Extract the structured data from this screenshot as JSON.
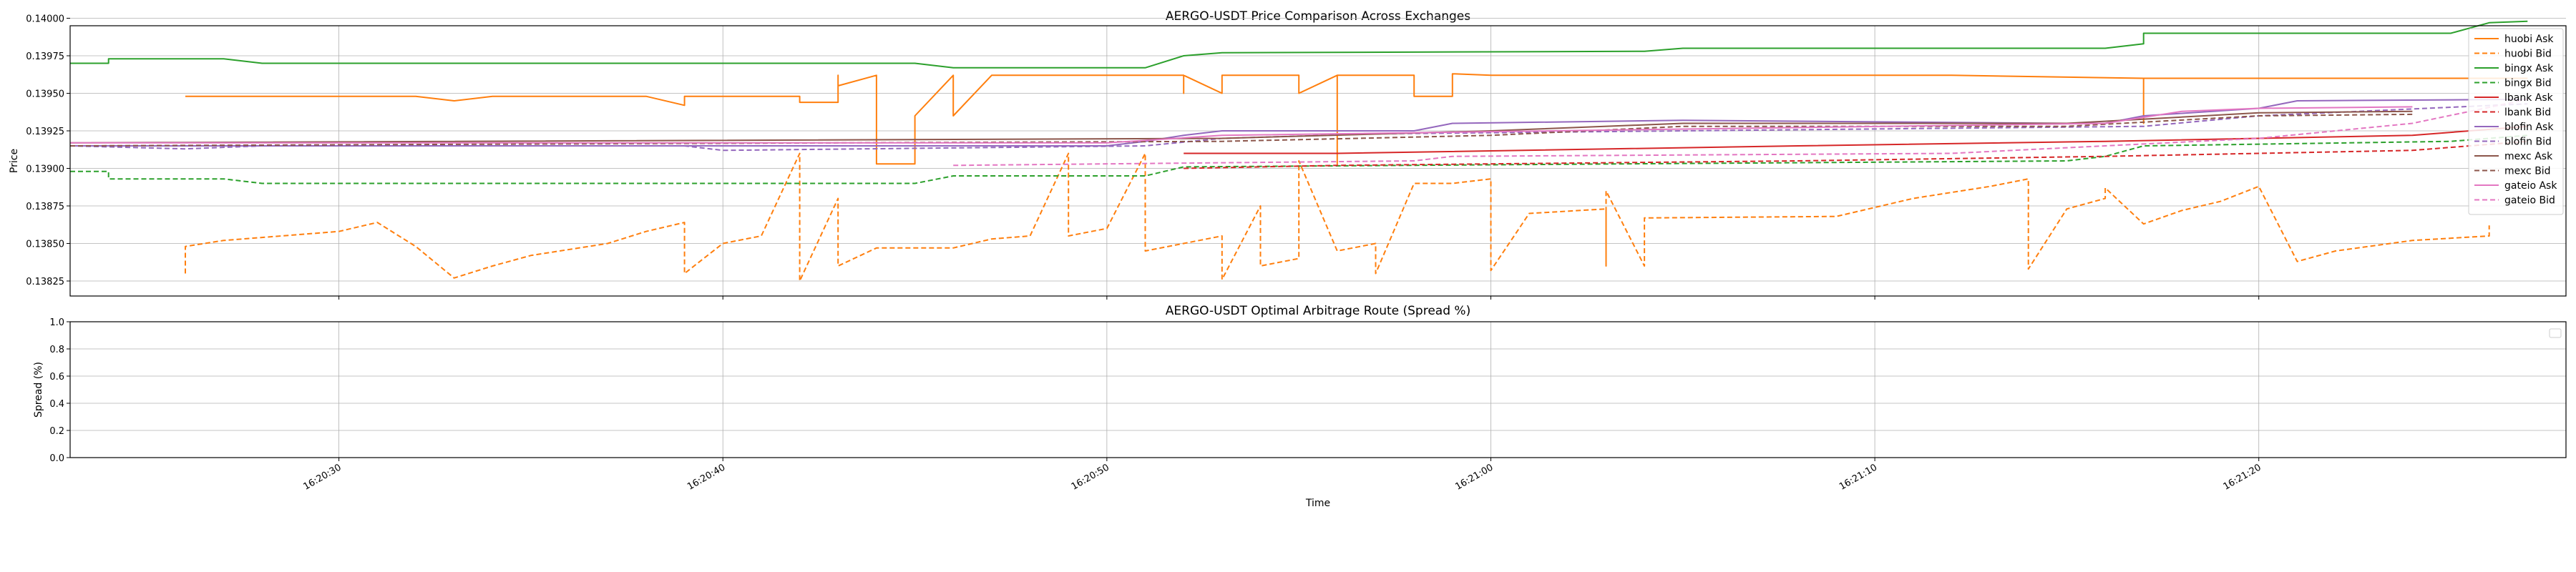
{
  "chart_data": [
    {
      "type": "line",
      "title": "AERGO-USDT Price Comparison Across Exchanges",
      "xlabel": "",
      "ylabel": "Price",
      "grid": true,
      "legend": "upper-right",
      "x_range": [
        "16:20:23",
        "16:21:28"
      ],
      "x_ticks": [
        "16:20:30",
        "16:20:40",
        "16:20:50",
        "16:21:00",
        "16:21:10",
        "16:21:20"
      ],
      "ylim": [
        0.13815,
        0.13995
      ],
      "y_ticks": [
        "0.13825",
        "0.13850",
        "0.13875",
        "0.13900",
        "0.13925",
        "0.13950",
        "0.13975",
        "0.14000"
      ],
      "series": [
        {
          "name": "huobi Ask",
          "color": "#ff7f0e",
          "dash": "solid",
          "points": [
            [
              "16:20:26",
              0.13948
            ],
            [
              "16:20:32",
              0.13948
            ],
            [
              "16:20:33",
              0.13945
            ],
            [
              "16:20:34",
              0.13948
            ],
            [
              "16:20:38",
              0.13948
            ],
            [
              "16:20:39",
              0.13942
            ],
            [
              "16:20:39",
              0.13948
            ],
            [
              "16:20:42",
              0.13948
            ],
            [
              "16:20:42",
              0.13944
            ],
            [
              "16:20:43",
              0.13944
            ],
            [
              "16:20:43",
              0.13962
            ],
            [
              "16:20:43",
              0.13955
            ],
            [
              "16:20:44",
              0.13962
            ],
            [
              "16:20:44",
              0.13955
            ],
            [
              "16:20:44",
              0.13903
            ],
            [
              "16:20:45",
              0.13903
            ],
            [
              "16:20:45",
              0.13935
            ],
            [
              "16:20:46",
              0.13962
            ],
            [
              "16:20:46",
              0.13935
            ],
            [
              "16:20:47",
              0.13962
            ],
            [
              "16:20:52",
              0.13962
            ],
            [
              "16:20:52",
              0.1395
            ],
            [
              "16:20:52",
              0.13962
            ],
            [
              "16:20:53",
              0.1395
            ],
            [
              "16:20:53",
              0.13962
            ],
            [
              "16:20:55",
              0.13962
            ],
            [
              "16:20:55",
              0.1395
            ],
            [
              "16:20:56",
              0.13962
            ],
            [
              "16:20:56",
              0.13903
            ],
            [
              "16:20:56",
              0.13962
            ],
            [
              "16:20:58",
              0.13962
            ],
            [
              "16:20:58",
              0.13948
            ],
            [
              "16:20:59",
              0.13948
            ],
            [
              "16:20:59",
              0.13963
            ],
            [
              "16:21:00",
              0.13962
            ],
            [
              "16:21:12",
              0.13962
            ],
            [
              "16:21:17",
              0.1396
            ],
            [
              "16:21:17",
              0.1393
            ],
            [
              "16:21:17",
              0.1396
            ],
            [
              "16:21:27",
              0.1396
            ]
          ]
        },
        {
          "name": "huobi Bid",
          "color": "#ff7f0e",
          "dash": "dashed",
          "points": [
            [
              "16:20:26",
              0.1383
            ],
            [
              "16:20:26",
              0.13848
            ],
            [
              "16:20:27",
              0.13852
            ],
            [
              "16:20:30",
              0.13858
            ],
            [
              "16:20:31",
              0.13864
            ],
            [
              "16:20:32",
              0.13848
            ],
            [
              "16:20:33",
              0.13827
            ],
            [
              "16:20:34",
              0.13835
            ],
            [
              "16:20:35",
              0.13842
            ],
            [
              "16:20:37",
              0.1385
            ],
            [
              "16:20:38",
              0.13858
            ],
            [
              "16:20:39",
              0.13864
            ],
            [
              "16:20:39",
              0.1383
            ],
            [
              "16:20:40",
              0.1385
            ],
            [
              "16:20:41",
              0.13855
            ],
            [
              "16:20:42",
              0.1391
            ],
            [
              "16:20:42",
              0.13825
            ],
            [
              "16:20:43",
              0.1388
            ],
            [
              "16:20:43",
              0.13835
            ],
            [
              "16:20:44",
              0.13847
            ],
            [
              "16:20:46",
              0.13847
            ],
            [
              "16:20:47",
              0.13853
            ],
            [
              "16:20:48",
              0.13855
            ],
            [
              "16:20:49",
              0.1391
            ],
            [
              "16:20:49",
              0.13855
            ],
            [
              "16:20:50",
              0.1386
            ],
            [
              "16:20:51",
              0.1391
            ],
            [
              "16:20:51",
              0.13845
            ],
            [
              "16:20:52",
              0.1385
            ],
            [
              "16:20:53",
              0.13855
            ],
            [
              "16:20:53",
              0.13826
            ],
            [
              "16:20:54",
              0.13875
            ],
            [
              "16:20:54",
              0.13835
            ],
            [
              "16:20:55",
              0.1384
            ],
            [
              "16:20:55",
              0.13905
            ],
            [
              "16:20:56",
              0.13845
            ],
            [
              "16:20:57",
              0.1385
            ],
            [
              "16:20:57",
              0.1383
            ],
            [
              "16:20:58",
              0.1389
            ],
            [
              "16:20:59",
              0.1389
            ],
            [
              "16:21:00",
              0.13893
            ],
            [
              "16:21:00",
              0.13832
            ],
            [
              "16:21:01",
              0.1387
            ],
            [
              "16:21:03",
              0.13873
            ],
            [
              "16:21:03",
              0.13835
            ],
            [
              "16:21:03",
              0.13885
            ],
            [
              "16:21:04",
              0.13835
            ],
            [
              "16:21:04",
              0.13867
            ],
            [
              "16:21:09",
              0.13868
            ],
            [
              "16:21:11",
              0.1388
            ],
            [
              "16:21:13",
              0.13888
            ],
            [
              "16:21:14",
              0.13893
            ],
            [
              "16:21:14",
              0.13833
            ],
            [
              "16:21:15",
              0.13873
            ],
            [
              "16:21:16",
              0.1388
            ],
            [
              "16:21:16",
              0.13887
            ],
            [
              "16:21:17",
              0.13863
            ],
            [
              "16:21:18",
              0.13872
            ],
            [
              "16:21:19",
              0.13878
            ],
            [
              "16:21:20",
              0.13888
            ],
            [
              "16:21:21",
              0.13838
            ],
            [
              "16:21:22",
              0.13845
            ],
            [
              "16:21:24",
              0.13852
            ],
            [
              "16:21:26",
              0.13855
            ],
            [
              "16:21:26",
              0.13862
            ]
          ]
        },
        {
          "name": "bingx Ask",
          "color": "#2ca02c",
          "dash": "solid",
          "points": [
            [
              "16:20:23",
              0.1397
            ],
            [
              "16:20:24",
              0.1397
            ],
            [
              "16:20:24",
              0.13973
            ],
            [
              "16:20:27",
              0.13973
            ],
            [
              "16:20:28",
              0.1397
            ],
            [
              "16:20:45",
              0.1397
            ],
            [
              "16:20:46",
              0.13967
            ],
            [
              "16:20:51",
              0.13967
            ],
            [
              "16:20:52",
              0.13975
            ],
            [
              "16:20:53",
              0.13977
            ],
            [
              "16:21:04",
              0.13978
            ],
            [
              "16:21:05",
              0.1398
            ],
            [
              "16:21:16",
              0.1398
            ],
            [
              "16:21:17",
              0.13983
            ],
            [
              "16:21:17",
              0.1399
            ],
            [
              "16:21:25",
              0.1399
            ],
            [
              "16:21:26",
              0.13997
            ],
            [
              "16:21:27",
              0.13998
            ]
          ]
        },
        {
          "name": "bingx Bid",
          "color": "#2ca02c",
          "dash": "dashed",
          "points": [
            [
              "16:20:23",
              0.13898
            ],
            [
              "16:20:24",
              0.13898
            ],
            [
              "16:20:24",
              0.13893
            ],
            [
              "16:20:27",
              0.13893
            ],
            [
              "16:20:28",
              0.1389
            ],
            [
              "16:20:45",
              0.1389
            ],
            [
              "16:20:46",
              0.13895
            ],
            [
              "16:20:51",
              0.13895
            ],
            [
              "16:20:52",
              0.13901
            ],
            [
              "16:21:15",
              0.13905
            ],
            [
              "16:21:16",
              0.13908
            ],
            [
              "16:21:17",
              0.13915
            ],
            [
              "16:21:25",
              0.13918
            ],
            [
              "16:21:27",
              0.13922
            ]
          ]
        },
        {
          "name": "lbank Ask",
          "color": "#d62728",
          "dash": "solid",
          "points": [
            [
              "16:20:52",
              0.1391
            ],
            [
              "16:20:56",
              0.1391
            ],
            [
              "16:21:08",
              0.13915
            ],
            [
              "16:21:16",
              0.13918
            ],
            [
              "16:21:24",
              0.13922
            ],
            [
              "16:21:27",
              0.13928
            ]
          ]
        },
        {
          "name": "lbank Bid",
          "color": "#d62728",
          "dash": "dashed",
          "points": [
            [
              "16:20:52",
              0.139
            ],
            [
              "16:20:56",
              0.13902
            ],
            [
              "16:21:08",
              0.13905
            ],
            [
              "16:21:16",
              0.13908
            ],
            [
              "16:21:24",
              0.13912
            ],
            [
              "16:21:27",
              0.13918
            ]
          ]
        },
        {
          "name": "blofin Ask",
          "color": "#9467bd",
          "dash": "solid",
          "points": [
            [
              "16:20:23",
              0.13915
            ],
            [
              "16:20:50",
              0.13915
            ],
            [
              "16:20:51",
              0.13918
            ],
            [
              "16:20:52",
              0.13922
            ],
            [
              "16:20:53",
              0.13925
            ],
            [
              "16:20:58",
              0.13925
            ],
            [
              "16:20:59",
              0.1393
            ],
            [
              "16:21:05",
              0.13932
            ],
            [
              "16:21:15",
              0.1393
            ],
            [
              "16:21:16",
              0.1393
            ],
            [
              "16:21:17",
              0.13935
            ],
            [
              "16:21:20",
              0.1394
            ],
            [
              "16:21:21",
              0.13945
            ],
            [
              "16:21:27",
              0.13946
            ]
          ]
        },
        {
          "name": "blofin Bid",
          "color": "#9467bd",
          "dash": "dashed",
          "points": [
            [
              "16:20:23",
              0.13915
            ],
            [
              "16:20:26",
              0.13913
            ],
            [
              "16:20:28",
              0.13915
            ],
            [
              "16:20:39",
              0.13915
            ],
            [
              "16:20:40",
              0.13912
            ],
            [
              "16:20:51",
              0.13915
            ],
            [
              "16:20:53",
              0.1392
            ],
            [
              "16:20:57",
              0.13923
            ],
            [
              "16:21:05",
              0.13925
            ],
            [
              "16:21:17",
              0.13928
            ],
            [
              "16:21:20",
              0.13935
            ],
            [
              "16:21:27",
              0.13943
            ]
          ]
        },
        {
          "name": "mexc Ask",
          "color": "#8c564b",
          "dash": "solid",
          "points": [
            [
              "16:20:23",
              0.13917
            ],
            [
              "16:20:53",
              0.1392
            ],
            [
              "16:21:00",
              0.13925
            ],
            [
              "16:21:05",
              0.1393
            ],
            [
              "16:21:15",
              0.1393
            ],
            [
              "16:21:20",
              0.13937
            ],
            [
              "16:21:24",
              0.13938
            ]
          ]
        },
        {
          "name": "mexc Bid",
          "color": "#8c564b",
          "dash": "dashed",
          "points": [
            [
              "16:20:23",
              0.13915
            ],
            [
              "16:20:53",
              0.13918
            ],
            [
              "16:21:00",
              0.13922
            ],
            [
              "16:21:05",
              0.13928
            ],
            [
              "16:21:15",
              0.13928
            ],
            [
              "16:21:20",
              0.13935
            ],
            [
              "16:21:24",
              0.13936
            ]
          ]
        },
        {
          "name": "gateio Ask",
          "color": "#e377c2",
          "dash": "solid",
          "points": [
            [
              "16:20:23",
              0.13917
            ],
            [
              "16:20:50",
              0.13917
            ],
            [
              "16:20:53",
              0.13922
            ],
            [
              "16:21:16",
              0.1393
            ],
            [
              "16:21:18",
              0.13938
            ],
            [
              "16:21:20",
              0.1394
            ],
            [
              "16:21:24",
              0.13941
            ]
          ]
        },
        {
          "name": "gateio Bid",
          "color": "#e377c2",
          "dash": "dashed",
          "points": [
            [
              "16:20:46",
              0.13902
            ],
            [
              "16:20:58",
              0.13905
            ],
            [
              "16:20:59",
              0.13908
            ],
            [
              "16:21:12",
              0.1391
            ],
            [
              "16:21:16",
              0.13915
            ],
            [
              "16:21:20",
              0.1392
            ],
            [
              "16:21:24",
              0.1393
            ],
            [
              "16:21:27",
              0.13946
            ]
          ]
        }
      ]
    },
    {
      "type": "line",
      "title": "AERGO-USDT Optimal Arbitrage Route (Spread %)",
      "xlabel": "Time",
      "ylabel": "Spread (%)",
      "grid": true,
      "x_range": [
        "16:20:23",
        "16:21:28"
      ],
      "x_ticks": [
        "16:20:30",
        "16:20:40",
        "16:20:50",
        "16:21:00",
        "16:21:10",
        "16:21:20"
      ],
      "ylim": [
        0.0,
        1.0
      ],
      "y_ticks": [
        "0.0",
        "0.2",
        "0.4",
        "0.6",
        "0.8",
        "1.0"
      ],
      "series": []
    }
  ]
}
